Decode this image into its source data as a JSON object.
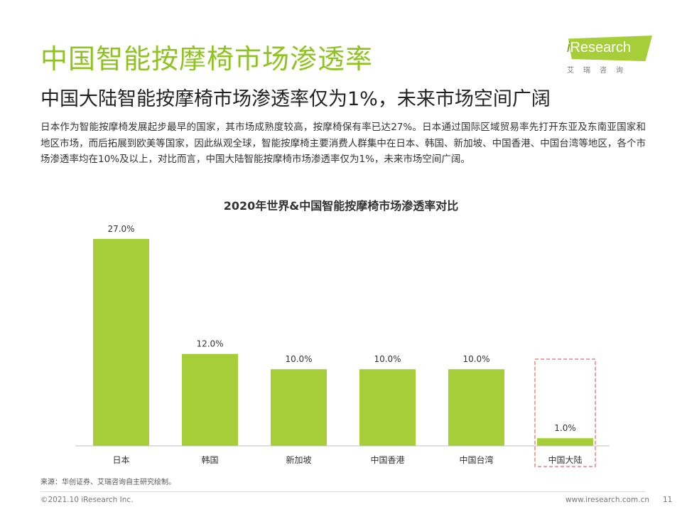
{
  "header": {
    "title": "中国智能按摩椅市场渗透率",
    "subtitle": "中国大陆智能按摩椅市场渗透率仅为1%，未来市场空间广阔",
    "logo_main": "Research",
    "logo_i": "i",
    "logo_sub": "艾瑞咨询"
  },
  "body_text": "日本作为智能按摩椅发展起步最早的国家，其市场成熟度较高，按摩椅保有率已达27%。日本通过国际区域贸易率先打开东亚及东南亚国家和地区市场，而后拓展到欧美等国家，因此纵观全球，智能按摩椅主要消费人群集中在日本、韩国、新加坡、中国香港、中国台湾等地区，各个市场渗透率均在10%及以上，对比而言，中国大陆智能按摩椅市场渗透率仅为1%，未来市场空间广阔。",
  "chart_data": {
    "type": "bar",
    "title": "2020年世界&中国智能按摩椅市场渗透率对比",
    "categories": [
      "日本",
      "韩国",
      "新加坡",
      "中国香港",
      "中国台湾",
      "中国大陆"
    ],
    "values": [
      27.0,
      12.0,
      10.0,
      10.0,
      10.0,
      1.0
    ],
    "labels": [
      "27.0%",
      "12.0%",
      "10.0%",
      "10.0%",
      "10.0%",
      "1.0%"
    ],
    "ylim": [
      0,
      27
    ],
    "highlighted_category": "中国大陆",
    "bar_color": "#a6ce39",
    "highlight_color": "#f08080",
    "xlabel": "",
    "ylabel": ""
  },
  "footer": {
    "source": "来源：华创证券、艾瑞咨询自主研究绘制。",
    "copyright": "©2021.10 iResearch Inc.",
    "website": "www.iresearch.com.cn",
    "page_number": "11"
  }
}
